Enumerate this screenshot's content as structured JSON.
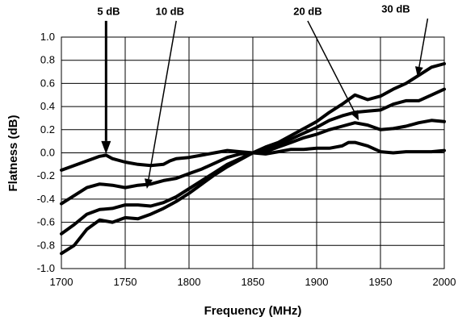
{
  "chart_data": {
    "type": "line",
    "title": "",
    "xlabel": "Frequency (MHz)",
    "ylabel": "Flatness (dB)",
    "xlim": [
      1700,
      2000
    ],
    "ylim": [
      -1.0,
      1.0
    ],
    "x_ticks": [
      "1700",
      "1750",
      "1800",
      "1850",
      "1900",
      "1950",
      "2000"
    ],
    "y_ticks": [
      "-1.0",
      "-0.8",
      "-0.6",
      "-0.4",
      "-0.2",
      "0.0",
      "0.2",
      "0.4",
      "0.6",
      "0.8",
      "1.0"
    ],
    "grid": true,
    "series": [
      {
        "name": "5 dB",
        "points": [
          [
            1700,
            -0.15
          ],
          [
            1710,
            -0.11
          ],
          [
            1720,
            -0.07
          ],
          [
            1730,
            -0.03
          ],
          [
            1735,
            -0.02
          ],
          [
            1740,
            -0.05
          ],
          [
            1750,
            -0.08
          ],
          [
            1760,
            -0.1
          ],
          [
            1770,
            -0.11
          ],
          [
            1780,
            -0.1
          ],
          [
            1785,
            -0.07
          ],
          [
            1790,
            -0.05
          ],
          [
            1800,
            -0.04
          ],
          [
            1810,
            -0.02
          ],
          [
            1820,
            0.0
          ],
          [
            1830,
            0.02
          ],
          [
            1840,
            0.01
          ],
          [
            1850,
            0.0
          ],
          [
            1860,
            -0.01
          ],
          [
            1870,
            0.01
          ],
          [
            1880,
            0.03
          ],
          [
            1890,
            0.03
          ],
          [
            1900,
            0.04
          ],
          [
            1910,
            0.04
          ],
          [
            1920,
            0.06
          ],
          [
            1925,
            0.09
          ],
          [
            1930,
            0.09
          ],
          [
            1940,
            0.06
          ],
          [
            1950,
            0.01
          ],
          [
            1960,
            0.0
          ],
          [
            1970,
            0.01
          ],
          [
            1980,
            0.01
          ],
          [
            1990,
            0.01
          ],
          [
            2000,
            0.02
          ]
        ]
      },
      {
        "name": "10 dB",
        "points": [
          [
            1700,
            -0.44
          ],
          [
            1710,
            -0.37
          ],
          [
            1720,
            -0.3
          ],
          [
            1730,
            -0.27
          ],
          [
            1740,
            -0.28
          ],
          [
            1750,
            -0.3
          ],
          [
            1760,
            -0.28
          ],
          [
            1770,
            -0.27
          ],
          [
            1780,
            -0.24
          ],
          [
            1790,
            -0.22
          ],
          [
            1800,
            -0.18
          ],
          [
            1810,
            -0.14
          ],
          [
            1820,
            -0.09
          ],
          [
            1830,
            -0.04
          ],
          [
            1840,
            -0.01
          ],
          [
            1850,
            0.0
          ],
          [
            1860,
            0.01
          ],
          [
            1870,
            0.05
          ],
          [
            1880,
            0.09
          ],
          [
            1890,
            0.13
          ],
          [
            1900,
            0.16
          ],
          [
            1910,
            0.2
          ],
          [
            1920,
            0.23
          ],
          [
            1930,
            0.26
          ],
          [
            1940,
            0.24
          ],
          [
            1950,
            0.2
          ],
          [
            1960,
            0.21
          ],
          [
            1970,
            0.23
          ],
          [
            1980,
            0.26
          ],
          [
            1990,
            0.28
          ],
          [
            2000,
            0.27
          ]
        ]
      },
      {
        "name": "20 dB",
        "points": [
          [
            1700,
            -0.7
          ],
          [
            1710,
            -0.62
          ],
          [
            1720,
            -0.53
          ],
          [
            1730,
            -0.49
          ],
          [
            1740,
            -0.48
          ],
          [
            1750,
            -0.45
          ],
          [
            1760,
            -0.45
          ],
          [
            1770,
            -0.46
          ],
          [
            1780,
            -0.43
          ],
          [
            1790,
            -0.38
          ],
          [
            1800,
            -0.31
          ],
          [
            1810,
            -0.24
          ],
          [
            1820,
            -0.17
          ],
          [
            1830,
            -0.1
          ],
          [
            1840,
            -0.05
          ],
          [
            1850,
            0.0
          ],
          [
            1860,
            0.03
          ],
          [
            1870,
            0.07
          ],
          [
            1880,
            0.12
          ],
          [
            1890,
            0.17
          ],
          [
            1900,
            0.22
          ],
          [
            1910,
            0.28
          ],
          [
            1920,
            0.32
          ],
          [
            1930,
            0.35
          ],
          [
            1940,
            0.36
          ],
          [
            1950,
            0.37
          ],
          [
            1960,
            0.42
          ],
          [
            1970,
            0.45
          ],
          [
            1980,
            0.45
          ],
          [
            1990,
            0.5
          ],
          [
            2000,
            0.55
          ]
        ]
      },
      {
        "name": "30 dB",
        "points": [
          [
            1700,
            -0.87
          ],
          [
            1710,
            -0.8
          ],
          [
            1720,
            -0.66
          ],
          [
            1730,
            -0.58
          ],
          [
            1740,
            -0.6
          ],
          [
            1750,
            -0.56
          ],
          [
            1760,
            -0.57
          ],
          [
            1770,
            -0.53
          ],
          [
            1780,
            -0.48
          ],
          [
            1790,
            -0.42
          ],
          [
            1800,
            -0.35
          ],
          [
            1810,
            -0.27
          ],
          [
            1820,
            -0.19
          ],
          [
            1830,
            -0.12
          ],
          [
            1840,
            -0.06
          ],
          [
            1850,
            0.0
          ],
          [
            1860,
            0.05
          ],
          [
            1870,
            0.09
          ],
          [
            1880,
            0.15
          ],
          [
            1890,
            0.21
          ],
          [
            1900,
            0.27
          ],
          [
            1910,
            0.35
          ],
          [
            1920,
            0.42
          ],
          [
            1930,
            0.5
          ],
          [
            1940,
            0.46
          ],
          [
            1950,
            0.49
          ],
          [
            1960,
            0.55
          ],
          [
            1970,
            0.6
          ],
          [
            1980,
            0.67
          ],
          [
            1990,
            0.74
          ],
          [
            2000,
            0.77
          ]
        ]
      }
    ],
    "annotations": [
      {
        "label": "5 dB",
        "text_at": [
          1737,
          1.22
        ],
        "arrow_from": [
          1735,
          1.14
        ],
        "arrow_to": [
          1735,
          -0.01
        ]
      },
      {
        "label": "10 dB",
        "text_at": [
          1785,
          1.22
        ],
        "arrow_from": [
          1790,
          1.14
        ],
        "arrow_to": [
          1767,
          -0.31
        ]
      },
      {
        "label": "20 dB",
        "text_at": [
          1893,
          1.22
        ],
        "arrow_from": [
          1893,
          1.14
        ],
        "arrow_to": [
          1933,
          0.28
        ]
      },
      {
        "label": "30 dB",
        "text_at": [
          1962,
          1.24
        ],
        "arrow_from": [
          1987,
          1.16
        ],
        "arrow_to": [
          1979,
          0.66
        ]
      }
    ]
  }
}
